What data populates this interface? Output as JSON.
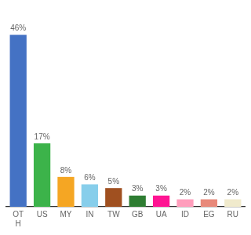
{
  "chart_data": {
    "type": "bar",
    "categories": [
      "OT\nH",
      "US",
      "MY",
      "IN",
      "TW",
      "GB",
      "UA",
      "ID",
      "EG",
      "RU"
    ],
    "values": [
      46,
      17,
      8,
      6,
      5,
      3,
      3,
      2,
      2,
      2
    ],
    "value_labels": [
      "46%",
      "17%",
      "8%",
      "6%",
      "5%",
      "3%",
      "3%",
      "2%",
      "2%",
      "2%"
    ],
    "colors": [
      "#4472C4",
      "#3CB34A",
      "#F5A623",
      "#87CEEB",
      "#A05020",
      "#2E7D32",
      "#FF1493",
      "#FF9EBC",
      "#E8897A",
      "#F0EACC"
    ],
    "ylim": [
      0,
      52
    ],
    "grid": false,
    "data_labels": true,
    "tick_labels": "x"
  }
}
